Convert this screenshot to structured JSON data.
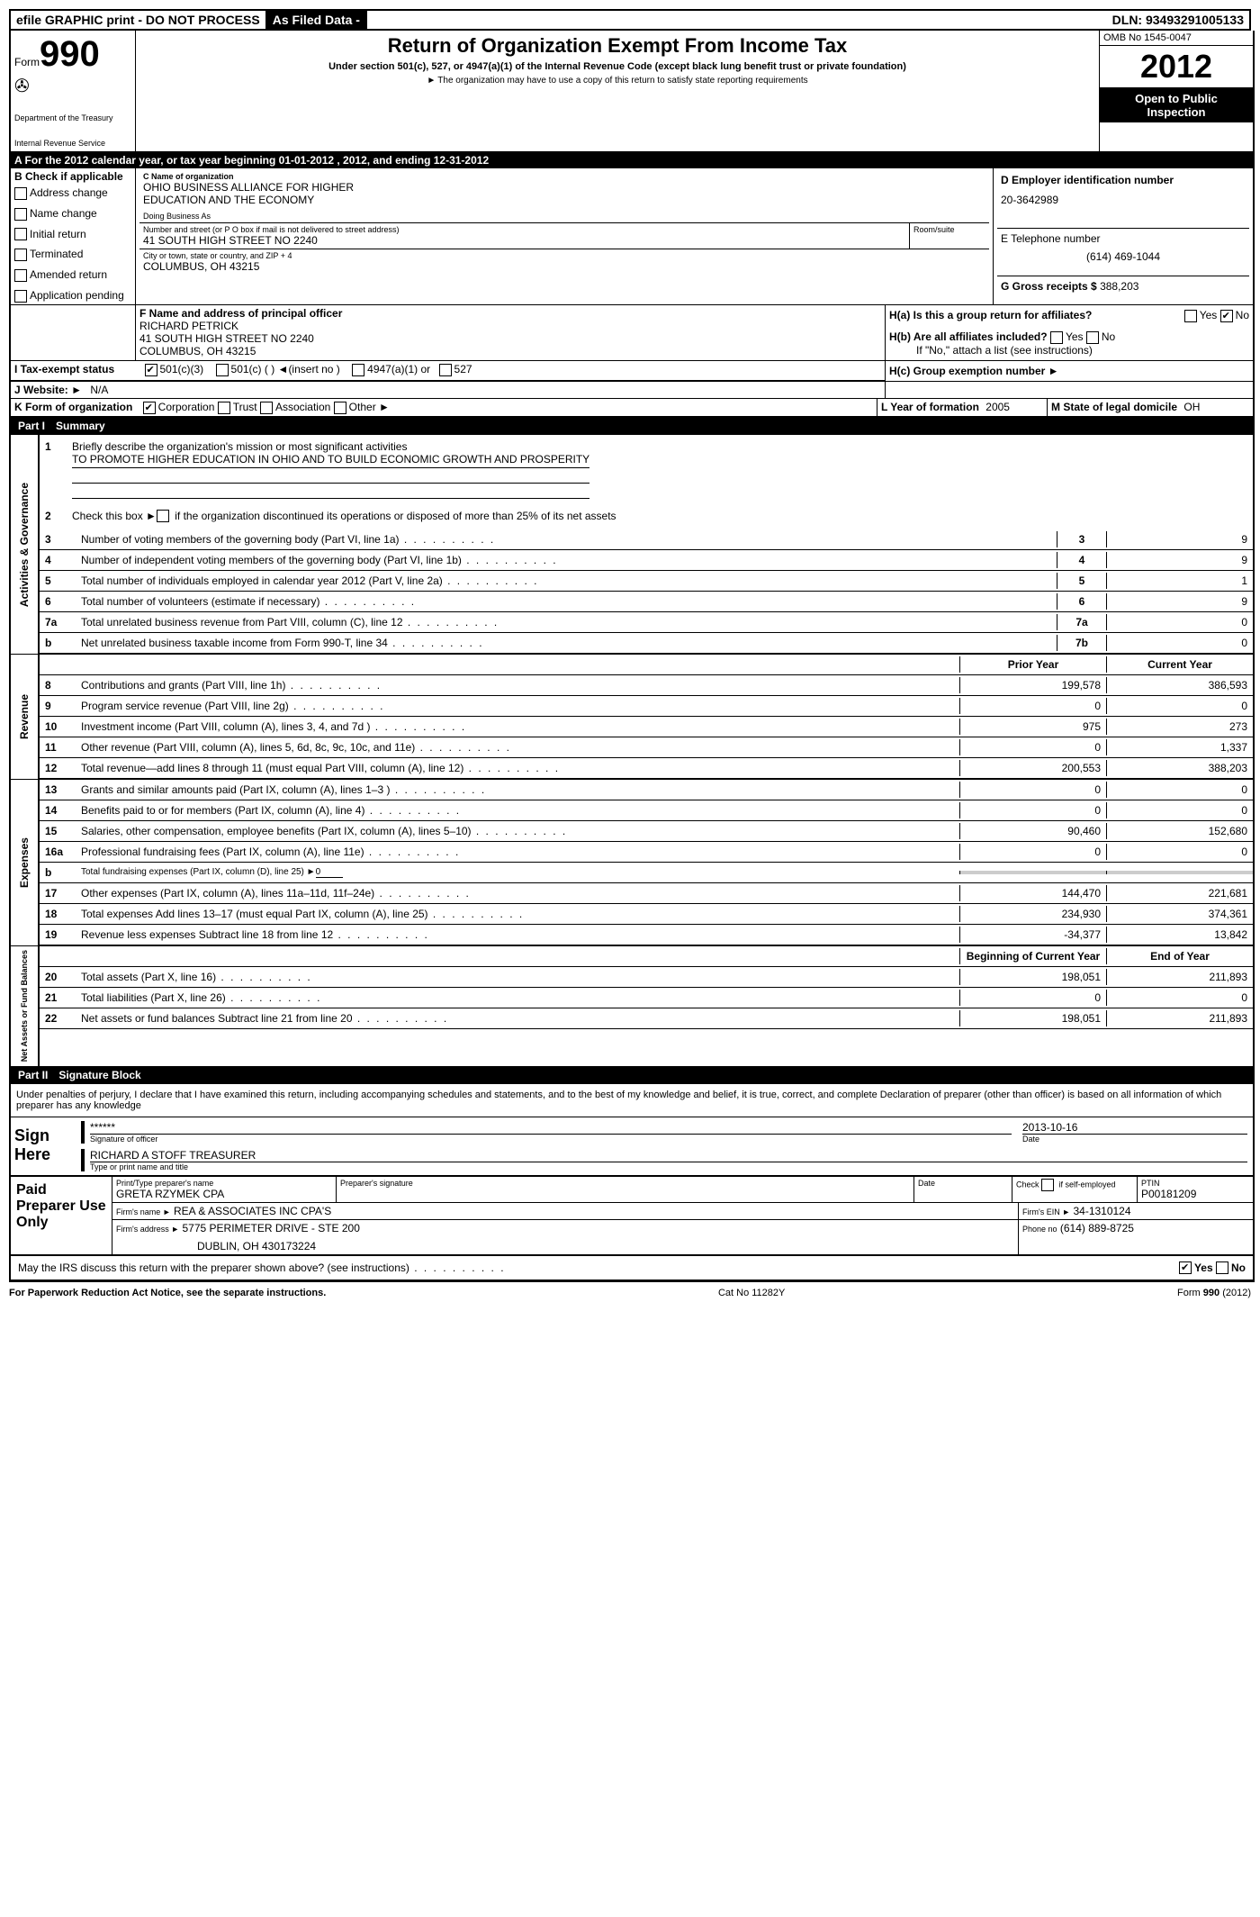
{
  "top": {
    "efile": "efile GRAPHIC print - DO NOT PROCESS",
    "asfiled": "As Filed Data -",
    "dln_label": "DLN:",
    "dln": "93493291005133"
  },
  "header": {
    "form": "Form",
    "form_num": "990",
    "dept1": "Department of the Treasury",
    "dept2": "Internal Revenue Service",
    "title": "Return of Organization Exempt From Income Tax",
    "subtitle": "Under section 501(c), 527, or 4947(a)(1) of the Internal Revenue Code (except black lung benefit trust or private foundation)",
    "note": "The organization may have to use a copy of this return to satisfy state reporting requirements",
    "omb": "OMB No 1545-0047",
    "year": "2012",
    "inspect1": "Open to Public",
    "inspect2": "Inspection"
  },
  "row_a": "A For the 2012 calendar year, or tax year beginning 01-01-2012    , 2012, and ending 12-31-2012",
  "section_b": {
    "label": "B Check if applicable",
    "items": [
      "Address change",
      "Name change",
      "Initial return",
      "Terminated",
      "Amended return",
      "Application pending"
    ]
  },
  "section_c": {
    "label": "C Name of organization",
    "name1": "OHIO BUSINESS ALLIANCE FOR HIGHER",
    "name2": "EDUCATION AND THE ECONOMY",
    "dba": "Doing Business As",
    "addr_label": "Number and street (or P O  box if mail is not delivered to street address)",
    "room_label": "Room/suite",
    "addr": "41 SOUTH HIGH STREET NO 2240",
    "city_label": "City or town, state or country, and ZIP + 4",
    "city": "COLUMBUS, OH  43215"
  },
  "section_d": {
    "label": "D Employer identification number",
    "ein": "20-3642989"
  },
  "section_e": {
    "label": "E Telephone number",
    "phone": "(614) 469-1044"
  },
  "section_g": {
    "label": "G Gross receipts $",
    "val": "388,203"
  },
  "section_f": {
    "label": "F  Name and address of principal officer",
    "name": "RICHARD PETRICK",
    "addr": "41 SOUTH HIGH STREET NO 2240",
    "city": "COLUMBUS, OH  43215"
  },
  "section_h": {
    "ha": "H(a)  Is this a group return for affiliates?",
    "hb": "H(b)  Are all affiliates included?",
    "hb_note": "If \"No,\" attach a list  (see instructions)",
    "hc": "H(c)   Group exemption number",
    "yes": "Yes",
    "no": "No"
  },
  "section_i": {
    "label": "I   Tax-exempt status",
    "opts": [
      "501(c)(3)",
      "501(c) (  )",
      "(insert no )",
      "4947(a)(1) or",
      "527"
    ]
  },
  "section_j": {
    "label": "J  Website:",
    "val": "N/A"
  },
  "section_k": {
    "label": "K Form of organization",
    "opts": [
      "Corporation",
      "Trust",
      "Association",
      "Other"
    ]
  },
  "section_l": {
    "label": "L Year of formation",
    "val": "2005"
  },
  "section_m": {
    "label": "M State of legal domicile",
    "val": "OH"
  },
  "part1": {
    "num": "Part I",
    "title": "Summary",
    "line1_label": "Briefly describe the organization's mission or most significant activities",
    "line1_text": "TO PROMOTE HIGHER EDUCATION IN OHIO AND TO BUILD ECONOMIC GROWTH AND PROSPERITY",
    "line2": "Check this box ►    if the organization discontinued its operations or disposed of more than 25% of its net assets",
    "lines_gov": [
      {
        "n": "3",
        "d": "Number of voting members of the governing body (Part VI, line 1a)",
        "b": "3",
        "v": "9"
      },
      {
        "n": "4",
        "d": "Number of independent voting members of the governing body (Part VI, line 1b)",
        "b": "4",
        "v": "9"
      },
      {
        "n": "5",
        "d": "Total number of individuals employed in calendar year 2012 (Part V, line 2a)",
        "b": "5",
        "v": "1"
      },
      {
        "n": "6",
        "d": "Total number of volunteers (estimate if necessary)",
        "b": "6",
        "v": "9"
      },
      {
        "n": "7a",
        "d": "Total unrelated business revenue from Part VIII, column (C), line 12",
        "b": "7a",
        "v": "0"
      },
      {
        "n": "b",
        "d": "Net unrelated business taxable income from Form 990-T, line 34",
        "b": "7b",
        "v": "0"
      }
    ],
    "prior_year": "Prior Year",
    "current_year": "Current Year",
    "revenue": [
      {
        "n": "8",
        "d": "Contributions and grants (Part VIII, line 1h)",
        "p": "199,578",
        "c": "386,593"
      },
      {
        "n": "9",
        "d": "Program service revenue (Part VIII, line 2g)",
        "p": "0",
        "c": "0"
      },
      {
        "n": "10",
        "d": "Investment income (Part VIII, column (A), lines 3, 4, and 7d )",
        "p": "975",
        "c": "273"
      },
      {
        "n": "11",
        "d": "Other revenue (Part VIII, column (A), lines 5, 6d, 8c, 9c, 10c, and 11e)",
        "p": "0",
        "c": "1,337"
      },
      {
        "n": "12",
        "d": "Total revenue—add lines 8 through 11 (must equal Part VIII, column (A), line 12)",
        "p": "200,553",
        "c": "388,203"
      }
    ],
    "expenses": [
      {
        "n": "13",
        "d": "Grants and similar amounts paid (Part IX, column (A), lines 1–3 )",
        "p": "0",
        "c": "0"
      },
      {
        "n": "14",
        "d": "Benefits paid to or for members (Part IX, column (A), line 4)",
        "p": "0",
        "c": "0"
      },
      {
        "n": "15",
        "d": "Salaries, other compensation, employee benefits (Part IX, column (A), lines 5–10)",
        "p": "90,460",
        "c": "152,680"
      },
      {
        "n": "16a",
        "d": "Professional fundraising fees (Part IX, column (A), line 11e)",
        "p": "0",
        "c": "0"
      },
      {
        "n": "b",
        "d": "Total fundraising expenses (Part IX, column (D), line 25) ►",
        "p": "",
        "c": ""
      },
      {
        "n": "17",
        "d": "Other expenses (Part IX, column (A), lines 11a–11d, 11f–24e)",
        "p": "144,470",
        "c": "221,681"
      },
      {
        "n": "18",
        "d": "Total expenses  Add lines 13–17 (must equal Part IX, column (A), line 25)",
        "p": "234,930",
        "c": "374,361"
      },
      {
        "n": "19",
        "d": "Revenue less expenses  Subtract line 18 from line 12",
        "p": "-34,377",
        "c": "13,842"
      }
    ],
    "begin_year": "Beginning of Current Year",
    "end_year": "End of Year",
    "netassets": [
      {
        "n": "20",
        "d": "Total assets (Part X, line 16)",
        "p": "198,051",
        "c": "211,893"
      },
      {
        "n": "21",
        "d": "Total liabilities (Part X, line 26)",
        "p": "0",
        "c": "0"
      },
      {
        "n": "22",
        "d": "Net assets or fund balances  Subtract line 21 from line 20",
        "p": "198,051",
        "c": "211,893"
      }
    ],
    "side_gov": "Activities & Governance",
    "side_rev": "Revenue",
    "side_exp": "Expenses",
    "side_net": "Net Assets or Fund Balances"
  },
  "part2": {
    "num": "Part II",
    "title": "Signature Block",
    "perjury": "Under penalties of perjury, I declare that I have examined this return, including accompanying schedules and statements, and to the best of my knowledge and belief, it is true, correct, and complete  Declaration of preparer (other than officer) is based on all information of which preparer has any knowledge",
    "sign_here": "Sign Here",
    "sig_stars": "******",
    "sig_date": "2013-10-16",
    "sig_officer": "Signature of officer",
    "date_label": "Date",
    "officer_name": "RICHARD A STOFF  TREASURER",
    "type_name": "Type or print name and title",
    "paid_prep": "Paid Preparer Use Only",
    "prep_name_label": "Print/Type preparer's name",
    "prep_name": "GRETA RZYMEK CPA",
    "prep_sig_label": "Preparer's signature",
    "prep_date_label": "Date",
    "check_self": "Check      if self-employed",
    "ptin_label": "PTIN",
    "ptin": "P00181209",
    "firm_name_label": "Firm's name    ►",
    "firm_name": "REA & ASSOCIATES INC CPA'S",
    "firm_ein_label": "Firm's EIN ►",
    "firm_ein": "34-1310124",
    "firm_addr_label": "Firm's address ►",
    "firm_addr": "5775 PERIMETER DRIVE - STE 200",
    "firm_city": "DUBLIN, OH  430173224",
    "phone_label": "Phone no",
    "phone": "(614) 889-8725",
    "irs_discuss": "May the IRS discuss this return with the preparer shown above? (see instructions)",
    "yes": "Yes",
    "no": "No"
  },
  "footer": {
    "left": "For Paperwork Reduction Act Notice, see the separate instructions.",
    "center": "Cat No 11282Y",
    "right": "Form 990 (2012)"
  }
}
